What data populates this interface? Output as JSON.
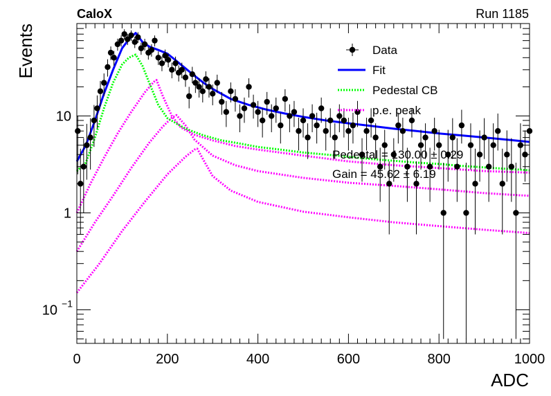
{
  "header": {
    "left": "CaloX",
    "right": "Run 1185"
  },
  "chart_data": {
    "type": "scatter",
    "xlabel": "ADC",
    "ylabel": "Events",
    "xlim": [
      0,
      1000
    ],
    "ylim": [
      0.045,
      90
    ],
    "yscale": "log",
    "grid": false,
    "legend_position": "top-right",
    "x_ticks": [
      "0",
      "200",
      "400",
      "600",
      "800",
      "1000"
    ],
    "y_ticks": [
      {
        "value": 0.1,
        "base": "10",
        "exp": "−1"
      },
      {
        "value": 1,
        "label": "1"
      },
      {
        "value": 10,
        "label": "10"
      }
    ],
    "legend": [
      {
        "label": "Data",
        "style": "marker",
        "color": "#000000"
      },
      {
        "label": "Fit",
        "style": "solid",
        "color": "#0000ff"
      },
      {
        "label": "Pedestal CB",
        "style": "dotted",
        "color": "#00ff00"
      },
      {
        "label": "p.e. peak",
        "style": "dotted",
        "color": "#ff00ff"
      }
    ],
    "annotations": [
      "Pedestal = 130.00 ± 0.29",
      "Gain = 45.62 ± 6.19"
    ],
    "fit": {
      "name": "Fit",
      "color": "#0000ff",
      "x": [
        0,
        20,
        40,
        60,
        80,
        100,
        115,
        130,
        145,
        160,
        180,
        200,
        220,
        240,
        260,
        280,
        300,
        340,
        380,
        420,
        460,
        500,
        550,
        600,
        650,
        700,
        750,
        800,
        850,
        900,
        950,
        1000
      ],
      "y": [
        3.4,
        5.0,
        9.0,
        17,
        30,
        50,
        62,
        72,
        58,
        52,
        48,
        44,
        37,
        31,
        26,
        22,
        19,
        15,
        13,
        11.6,
        10.6,
        9.8,
        9.0,
        8.4,
        7.9,
        7.4,
        7.0,
        6.6,
        6.3,
        6.0,
        5.7,
        5.4
      ]
    },
    "pedestal": {
      "name": "Pedestal CB",
      "color": "#00ff00",
      "x": [
        0,
        20,
        40,
        60,
        80,
        100,
        115,
        130,
        145,
        160,
        180,
        200,
        240,
        280,
        320,
        360,
        400,
        450,
        500,
        550,
        600,
        650,
        700,
        750,
        800,
        850,
        900,
        950,
        1000
      ],
      "y": [
        2.7,
        3.3,
        6.0,
        12,
        22,
        34,
        40,
        43,
        33,
        22,
        13,
        9.5,
        7.4,
        6.3,
        5.6,
        5.2,
        4.8,
        4.5,
        4.2,
        4.0,
        3.8,
        3.6,
        3.45,
        3.3,
        3.2,
        3.05,
        2.95,
        2.85,
        2.75
      ]
    },
    "pe_peaks": [
      {
        "name": "p.e. peak",
        "color": "#ff00ff",
        "x": [
          0,
          30,
          60,
          90,
          120,
          150,
          170,
          176,
          190,
          210,
          230,
          260,
          300,
          350,
          400,
          500,
          600,
          700,
          800,
          900,
          1000
        ],
        "y": [
          1.0,
          2.0,
          3.7,
          6.6,
          11,
          17.5,
          22.5,
          23.5,
          16,
          10,
          7.6,
          6.4,
          5.6,
          4.9,
          4.5,
          3.9,
          3.4,
          3.1,
          2.9,
          2.7,
          2.6
        ]
      },
      {
        "name": "p.e. peak",
        "color": "#ff00ff",
        "x": [
          0,
          40,
          80,
          120,
          160,
          190,
          210,
          220,
          240,
          260,
          300,
          350,
          400,
          500,
          600,
          700,
          800,
          900,
          1000
        ],
        "y": [
          0.4,
          0.8,
          1.5,
          2.9,
          5.3,
          7.8,
          9.6,
          10.2,
          8.0,
          5.7,
          3.9,
          3.1,
          2.7,
          2.3,
          2.05,
          1.9,
          1.75,
          1.6,
          1.5
        ]
      },
      {
        "name": "p.e. peak",
        "color": "#ff00ff",
        "x": [
          0,
          50,
          100,
          150,
          200,
          240,
          260,
          266,
          280,
          300,
          340,
          400,
          500,
          600,
          700,
          800,
          900,
          1000
        ],
        "y": [
          0.15,
          0.3,
          0.65,
          1.3,
          2.5,
          3.8,
          4.5,
          4.6,
          3.5,
          2.4,
          1.7,
          1.3,
          1.03,
          0.9,
          0.8,
          0.73,
          0.67,
          0.62
        ]
      }
    ],
    "data_points": {
      "name": "Data",
      "color": "#000000",
      "x": [
        2,
        8,
        15,
        22,
        30,
        38,
        45,
        52,
        60,
        68,
        75,
        82,
        90,
        98,
        105,
        112,
        120,
        128,
        135,
        142,
        150,
        158,
        165,
        172,
        180,
        188,
        195,
        202,
        210,
        218,
        225,
        232,
        240,
        248,
        255,
        262,
        270,
        278,
        285,
        292,
        300,
        310,
        320,
        330,
        340,
        350,
        360,
        370,
        380,
        390,
        400,
        410,
        420,
        430,
        440,
        450,
        460,
        470,
        480,
        490,
        500,
        510,
        520,
        530,
        540,
        550,
        560,
        570,
        580,
        590,
        600,
        610,
        620,
        630,
        640,
        650,
        660,
        670,
        680,
        690,
        700,
        710,
        720,
        730,
        740,
        750,
        760,
        770,
        780,
        790,
        800,
        810,
        820,
        830,
        840,
        850,
        860,
        870,
        880,
        890,
        900,
        910,
        920,
        930,
        940,
        950,
        960,
        970,
        980,
        990,
        1000
      ],
      "y": [
        7,
        2,
        3,
        5,
        6,
        9,
        12,
        18,
        22,
        32,
        45,
        40,
        55,
        60,
        70,
        62,
        68,
        58,
        65,
        50,
        55,
        45,
        48,
        60,
        40,
        35,
        42,
        38,
        30,
        35,
        28,
        30,
        25,
        16,
        27,
        22,
        20,
        18,
        24,
        20,
        17,
        22,
        14,
        11,
        18,
        15,
        10,
        12,
        20,
        13,
        11,
        9,
        14,
        10,
        12,
        8,
        15,
        10,
        11,
        7,
        9,
        6,
        10,
        8,
        12,
        7,
        9,
        6,
        10,
        9,
        7,
        8,
        11,
        4,
        7,
        9,
        6,
        3,
        5,
        2,
        4,
        8,
        7,
        3,
        9,
        2,
        5,
        6,
        3,
        7,
        5,
        1,
        4,
        6,
        3,
        8,
        1,
        5,
        2,
        4,
        6,
        3,
        5,
        7,
        2,
        4,
        3,
        1,
        5,
        4,
        7
      ],
      "err_low": [
        4.5,
        1.4,
        2.0,
        2.8,
        3.2,
        4.2,
        4.6,
        5.5,
        6.0,
        6.5,
        7.2,
        7.0,
        7.8,
        8.0,
        8.5,
        8.0,
        8.4,
        7.8,
        8.2,
        7.2,
        7.6,
        6.8,
        7.0,
        7.8,
        6.4,
        6.0,
        6.5,
        6.2,
        5.5,
        6.0,
        5.3,
        5.5,
        5.0,
        4.0,
        5.2,
        4.7,
        4.5,
        4.2,
        4.9,
        4.5,
        4.1,
        4.7,
        3.7,
        3.3,
        4.2,
        3.9,
        3.2,
        3.5,
        4.5,
        3.6,
        3.3,
        3.0,
        3.7,
        3.2,
        3.5,
        2.8,
        3.9,
        3.2,
        3.3,
        2.6,
        3.0,
        2.4,
        3.2,
        2.8,
        3.5,
        2.6,
        3.0,
        2.4,
        3.2,
        3.0,
        2.6,
        2.8,
        3.3,
        1.9,
        2.6,
        3.0,
        2.4,
        1.7,
        2.2,
        1.4,
        1.9,
        2.8,
        2.6,
        1.7,
        3.0,
        1.4,
        2.2,
        2.4,
        1.7,
        2.6,
        2.2,
        0.95,
        1.9,
        2.4,
        1.7,
        2.8,
        0.95,
        2.2,
        1.4,
        1.9,
        2.4,
        1.7,
        2.2,
        2.6,
        1.4,
        1.9,
        1.7,
        0.95,
        2.2,
        1.9,
        2.6
      ],
      "err_high": [
        3.0,
        2.6,
        2.9,
        3.3,
        3.5,
        4.0,
        4.3,
        5.0,
        5.5,
        6.5,
        7.2,
        7.0,
        7.8,
        8.0,
        8.5,
        8.0,
        8.4,
        7.8,
        8.2,
        7.2,
        7.6,
        6.8,
        7.0,
        7.8,
        6.4,
        6.0,
        6.5,
        6.2,
        5.5,
        6.0,
        5.3,
        5.5,
        5.0,
        4.0,
        5.2,
        4.7,
        4.5,
        4.2,
        4.9,
        4.5,
        4.1,
        4.7,
        3.7,
        3.3,
        4.2,
        3.9,
        3.2,
        3.5,
        4.5,
        3.6,
        3.3,
        3.0,
        3.7,
        3.2,
        3.5,
        2.8,
        3.9,
        3.2,
        3.3,
        2.6,
        3.0,
        2.4,
        3.2,
        2.8,
        3.5,
        2.6,
        3.0,
        2.4,
        3.2,
        3.0,
        2.6,
        2.8,
        3.3,
        1.9,
        2.6,
        3.0,
        2.4,
        1.7,
        2.2,
        1.4,
        1.9,
        2.8,
        2.6,
        1.7,
        3.0,
        1.4,
        2.2,
        2.4,
        1.7,
        2.6,
        2.2,
        2.3,
        3.2,
        3.5,
        2.9,
        3.6,
        2.3,
        3.4,
        2.6,
        3.1,
        3.5,
        2.9,
        3.4,
        3.6,
        2.6,
        3.1,
        2.9,
        2.3,
        3.4,
        3.1,
        3.6
      ]
    }
  }
}
